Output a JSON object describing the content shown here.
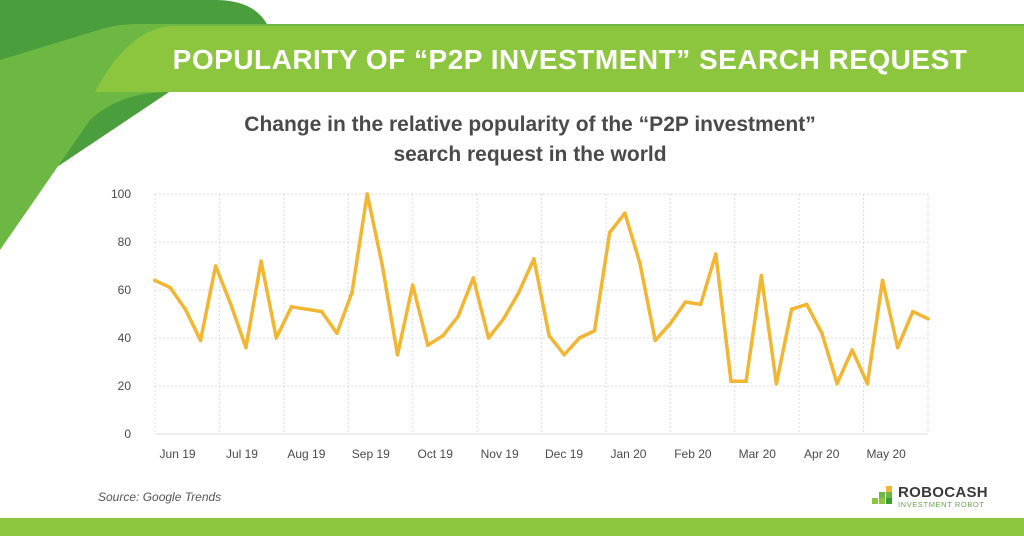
{
  "header": {
    "banner_title": "POPULARITY OF “P2P INVESTMENT” SEARCH REQUEST",
    "subtitle_line1": "Change in the relative popularity of the “P2P investment”",
    "subtitle_line2": "search request in the world"
  },
  "footer": {
    "source": "Source: Google Trends",
    "logo_name": "ROBOCASH",
    "logo_tagline": "INVESTMENT ROBOT"
  },
  "colors": {
    "line": "#f2b632",
    "banner_green": "#8cc63f",
    "dark_green": "#3f9b35",
    "grid": "#dcdcdc",
    "text": "#4a4a4a"
  },
  "chart_data": {
    "type": "line",
    "x_tick_labels": [
      "Jun 19",
      "Jul 19",
      "Aug 19",
      "Sep 19",
      "Oct 19",
      "Nov 19",
      "Dec 19",
      "Jan 20",
      "Feb 20",
      "Mar 20",
      "Apr 20",
      "May 20"
    ],
    "y_ticks": [
      0,
      20,
      40,
      60,
      80,
      100
    ],
    "ylim": [
      0,
      100
    ],
    "grid": true,
    "values": [
      64,
      61,
      52,
      39,
      70,
      54,
      36,
      72,
      40,
      53,
      52,
      51,
      42,
      59,
      100,
      70,
      33,
      62,
      37,
      41,
      49,
      65,
      40,
      48,
      59,
      73,
      41,
      33,
      40,
      43,
      84,
      92,
      71,
      39,
      46,
      55,
      54,
      75,
      22,
      22,
      66,
      21,
      52,
      54,
      42,
      21,
      35,
      21,
      64,
      36,
      51,
      48
    ]
  }
}
